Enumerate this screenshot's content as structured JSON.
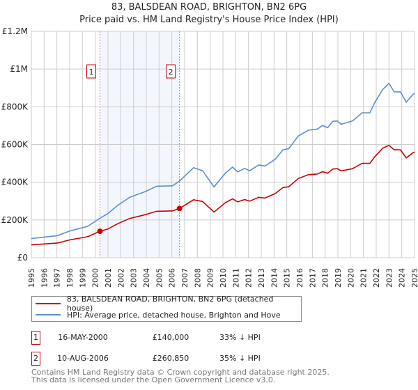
{
  "chart_data": {
    "type": "line",
    "title": "83, BALSDEAN ROAD, BRIGHTON, BN2 6PG",
    "subtitle": "Price paid vs. HM Land Registry's House Price Index (HPI)",
    "xlabel": "",
    "ylabel": "",
    "xlim": [
      1995,
      2025
    ],
    "ylim": [
      0,
      1200000
    ],
    "yticks": [
      {
        "v": 0,
        "label": "£0"
      },
      {
        "v": 200000,
        "label": "£200K"
      },
      {
        "v": 400000,
        "label": "£400K"
      },
      {
        "v": 600000,
        "label": "£600K"
      },
      {
        "v": 800000,
        "label": "£800K"
      },
      {
        "v": 1000000,
        "label": "£1M"
      },
      {
        "v": 1200000,
        "label": "£1.2M"
      }
    ],
    "xticks": [
      "1995",
      "1996",
      "1997",
      "1998",
      "1999",
      "2000",
      "2001",
      "2002",
      "2003",
      "2004",
      "2005",
      "2006",
      "2007",
      "2008",
      "2009",
      "2010",
      "2011",
      "2012",
      "2013",
      "2014",
      "2015",
      "2016",
      "2017",
      "2018",
      "2019",
      "2020",
      "2021",
      "2022",
      "2023",
      "2024",
      "2025"
    ],
    "grid": true,
    "series": [
      {
        "name": "83, BALSDEAN ROAD, BRIGHTON, BN2 6PG (detached house)",
        "color": "#cc0000",
        "x": [
          1995,
          1997.05,
          1998,
          1999.4,
          2000.37,
          2001,
          2001.75,
          2002.7,
          2003.9,
          2004.8,
          2006.05,
          2006.6,
          2007.7,
          2008.4,
          2009.3,
          2010.2,
          2010.75,
          2011.15,
          2011.7,
          2012.1,
          2012.8,
          2013.3,
          2014.1,
          2014.7,
          2015.15,
          2015.9,
          2016.7,
          2017.4,
          2017.8,
          2018.2,
          2018.6,
          2018.95,
          2019.25,
          2020.15,
          2020.9,
          2021.5,
          2021.9,
          2022.5,
          2023.0,
          2023.4,
          2023.9,
          2024.35,
          2024.9,
          2025
        ],
        "values": [
          68,
          78,
          94,
          111,
          140,
          152,
          180,
          208,
          228,
          246,
          248,
          261,
          307,
          298,
          242,
          292,
          312,
          296,
          308,
          300,
          320,
          316,
          340,
          372,
          376,
          420,
          440,
          444,
          456,
          448,
          470,
          472,
          460,
          472,
          500,
          500,
          536,
          580,
          596,
          572,
          572,
          529,
          557,
          560
        ]
      },
      {
        "name": "HPI: Average price, detached house, Brighton and Hove",
        "color": "#5b8fd0",
        "x": [
          1995,
          1997.05,
          1998,
          1999.4,
          2000.37,
          2001,
          2001.75,
          2002.7,
          2003.9,
          2004.8,
          2006.05,
          2006.6,
          2007.7,
          2008.4,
          2009.3,
          2010.2,
          2010.75,
          2011.15,
          2011.7,
          2012.1,
          2012.8,
          2013.3,
          2014.1,
          2014.7,
          2015.15,
          2015.9,
          2016.7,
          2017.4,
          2017.8,
          2018.2,
          2018.6,
          2018.95,
          2019.25,
          2020.15,
          2020.9,
          2021.5,
          2021.9,
          2022.5,
          2023.0,
          2023.4,
          2023.9,
          2024.35,
          2024.9,
          2025
        ],
        "values": [
          101,
          117,
          141,
          166,
          209,
          234,
          277,
          320,
          350,
          379,
          381,
          406,
          477,
          461,
          375,
          449,
          480,
          455,
          473,
          461,
          492,
          486,
          522,
          572,
          578,
          645,
          676,
          682,
          701,
          689,
          723,
          725,
          707,
          725,
          768,
          768,
          824,
          891,
          925,
          879,
          879,
          824,
          867,
          870
        ]
      }
    ],
    "value_units": "thousands GBP",
    "sales": [
      {
        "id": "1",
        "x": 2000.37,
        "value": 140,
        "date": "16-MAY-2000",
        "price": "£140,000",
        "hpi": "33% ↓ HPI"
      },
      {
        "id": "2",
        "x": 2006.6,
        "value": 260.85,
        "date": "10-AUG-2006",
        "price": "£260,850",
        "hpi": "35% ↓ HPI"
      }
    ]
  },
  "footer": {
    "line1": "Contains HM Land Registry data © Crown copyright and database right 2025.",
    "line2": "This data is licensed under the Open Government Licence v3.0."
  }
}
